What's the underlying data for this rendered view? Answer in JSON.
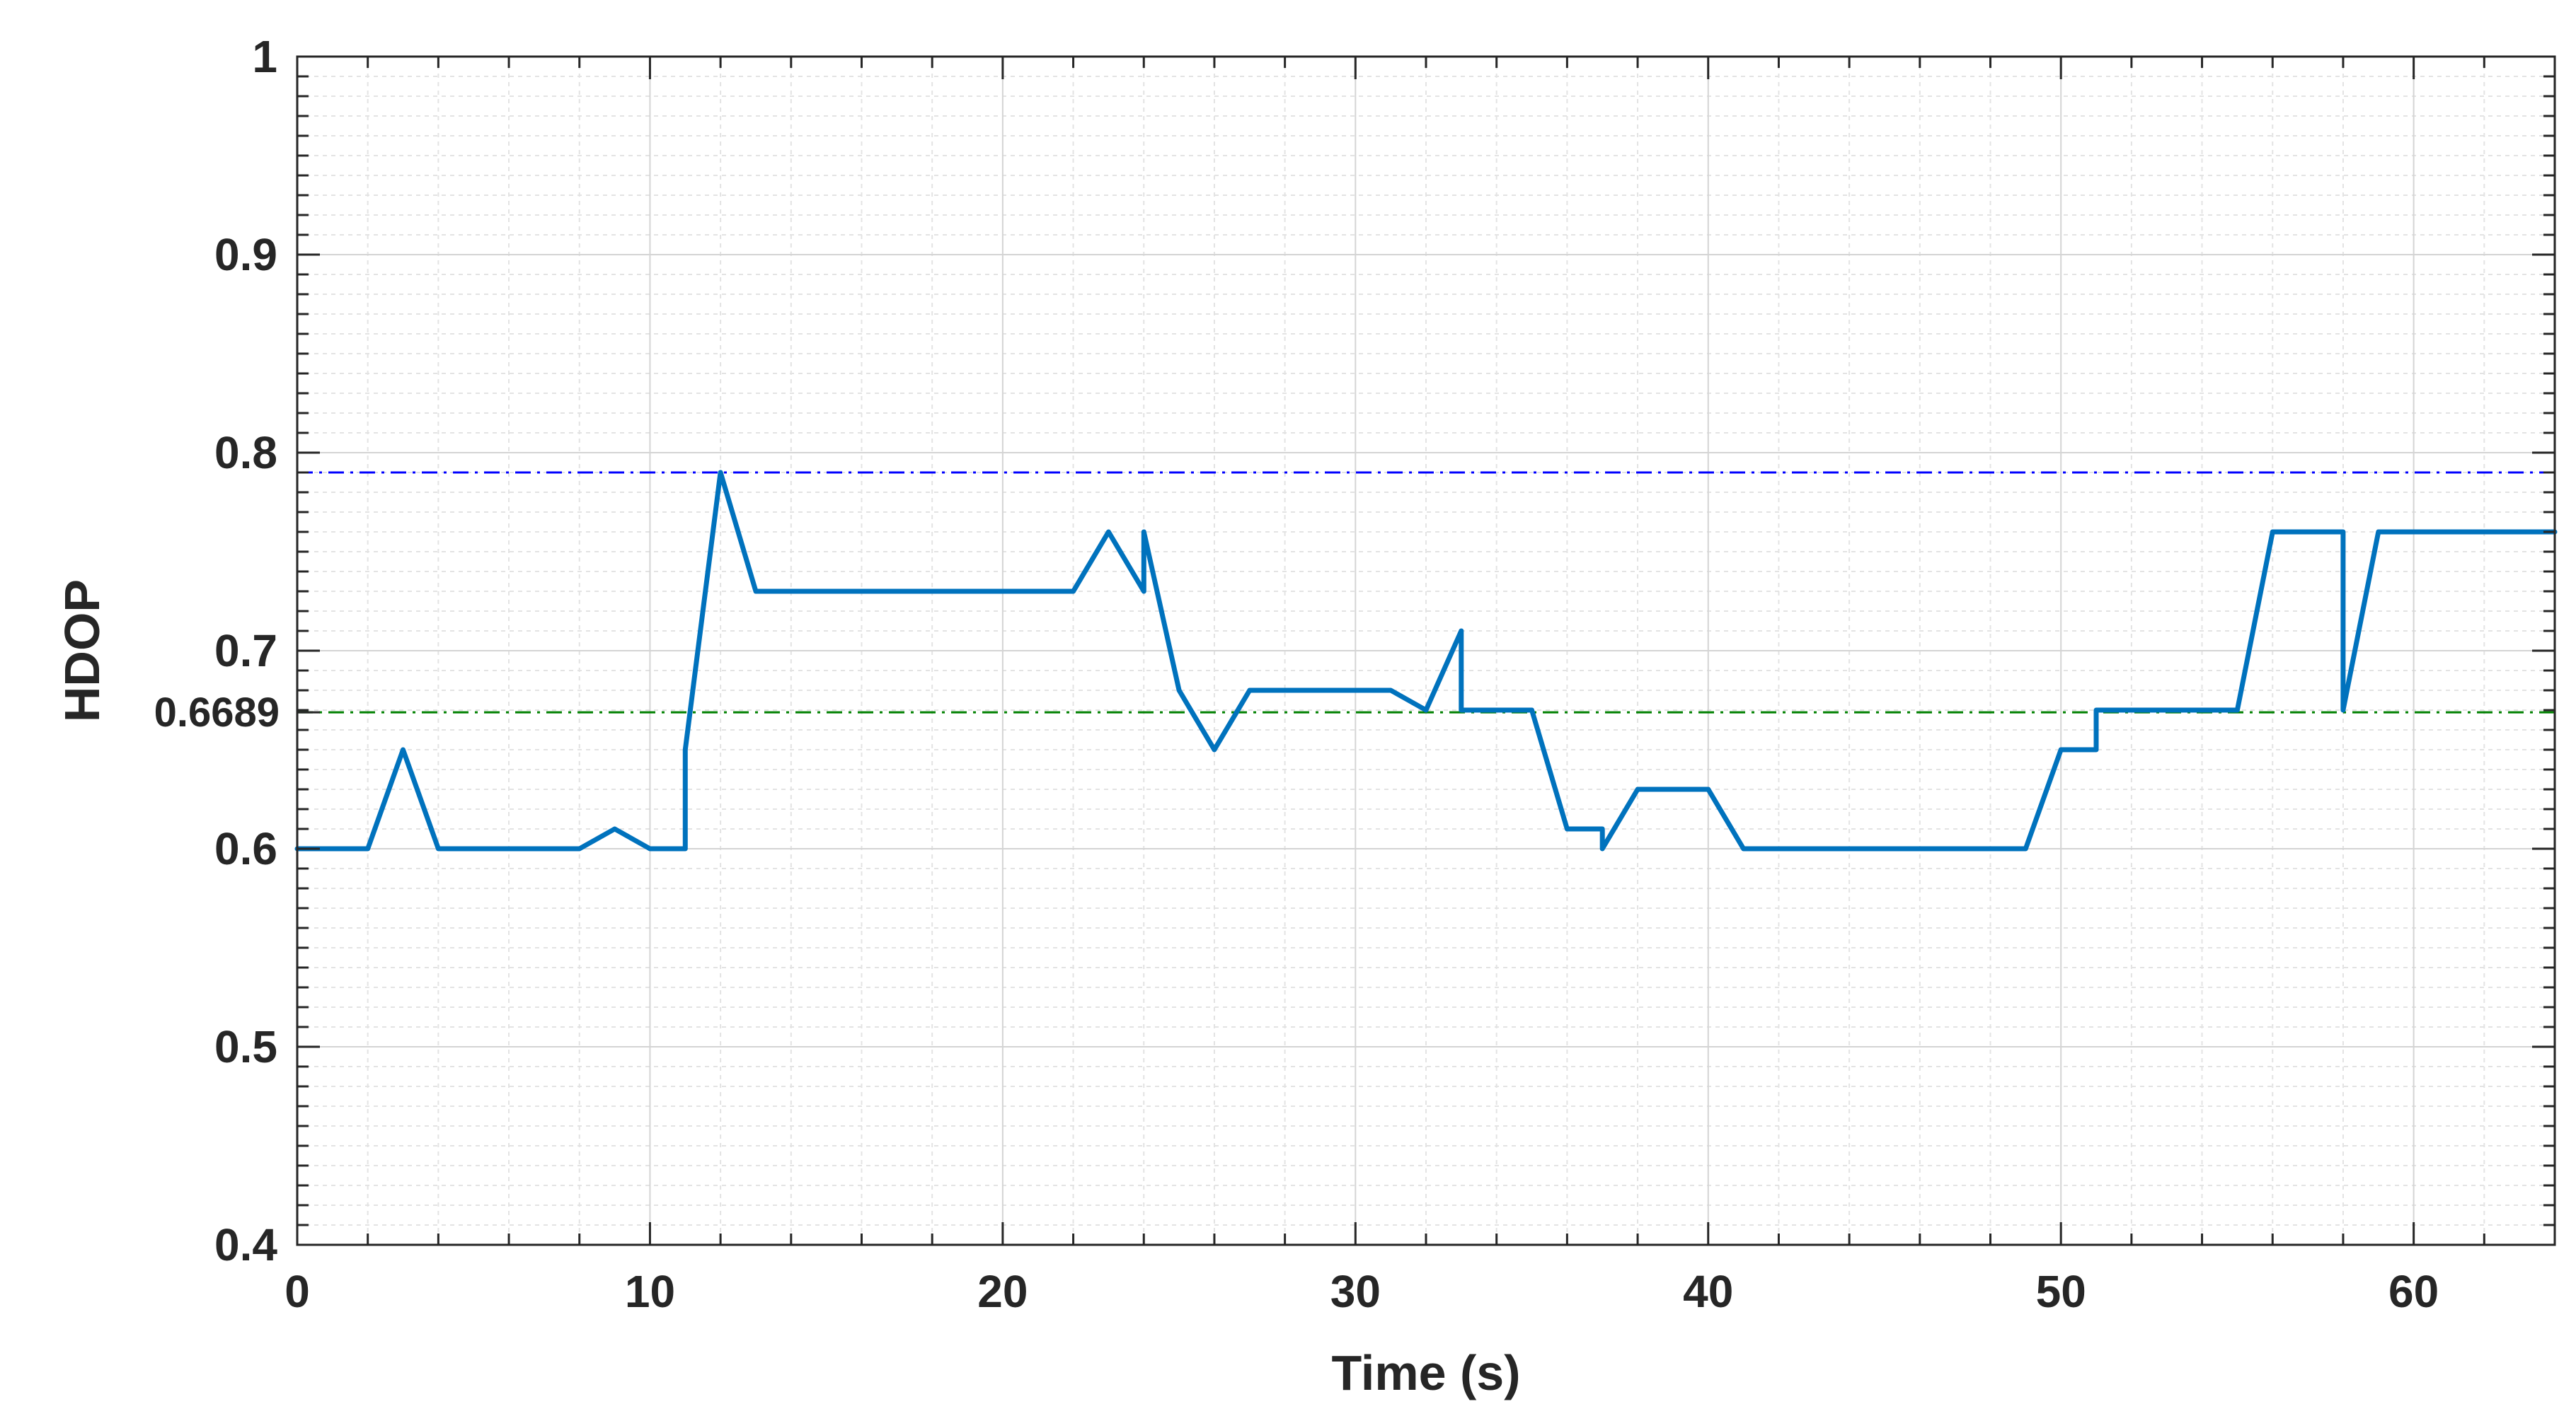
{
  "chart_data": {
    "type": "line",
    "xlabel": "Time (s)",
    "ylabel": "HDOP",
    "xlim": [
      0,
      64
    ],
    "ylim": [
      0.4,
      1
    ],
    "xticks": [
      0,
      10,
      20,
      30,
      40,
      50,
      60
    ],
    "yticks": [
      0.4,
      0.5,
      0.6,
      0.7,
      0.8,
      0.9,
      1
    ],
    "ytick_labels": [
      "0.4",
      "0.5",
      "0.6",
      "0.7",
      "0.8",
      "0.9",
      "1"
    ],
    "extra_ytick_label": "0.6689",
    "grid": true,
    "minor_grid": true,
    "series": [
      {
        "color": "#0072BD",
        "x": [
          0,
          2,
          3,
          4,
          8,
          9,
          10,
          11,
          11,
          12,
          13,
          22,
          23,
          24,
          24,
          25,
          26,
          27,
          31,
          32,
          33,
          33,
          35,
          36,
          37,
          37,
          38,
          40,
          41,
          49,
          50,
          51,
          51,
          55,
          56,
          58,
          58,
          59,
          64
        ],
        "y": [
          0.6,
          0.6,
          0.65,
          0.6,
          0.6,
          0.61,
          0.6,
          0.6,
          0.65,
          0.79,
          0.73,
          0.73,
          0.76,
          0.73,
          0.76,
          0.68,
          0.65,
          0.68,
          0.68,
          0.67,
          0.71,
          0.67,
          0.67,
          0.61,
          0.61,
          0.6,
          0.63,
          0.63,
          0.6,
          0.6,
          0.65,
          0.65,
          0.67,
          0.67,
          0.76,
          0.76,
          0.67,
          0.76,
          0.76
        ]
      }
    ],
    "reference_lines": [
      {
        "y": 0.79,
        "color": "#0000FF",
        "style": "dash-dot"
      },
      {
        "y": 0.6689,
        "color": "#008000",
        "style": "dash-dot"
      }
    ]
  }
}
